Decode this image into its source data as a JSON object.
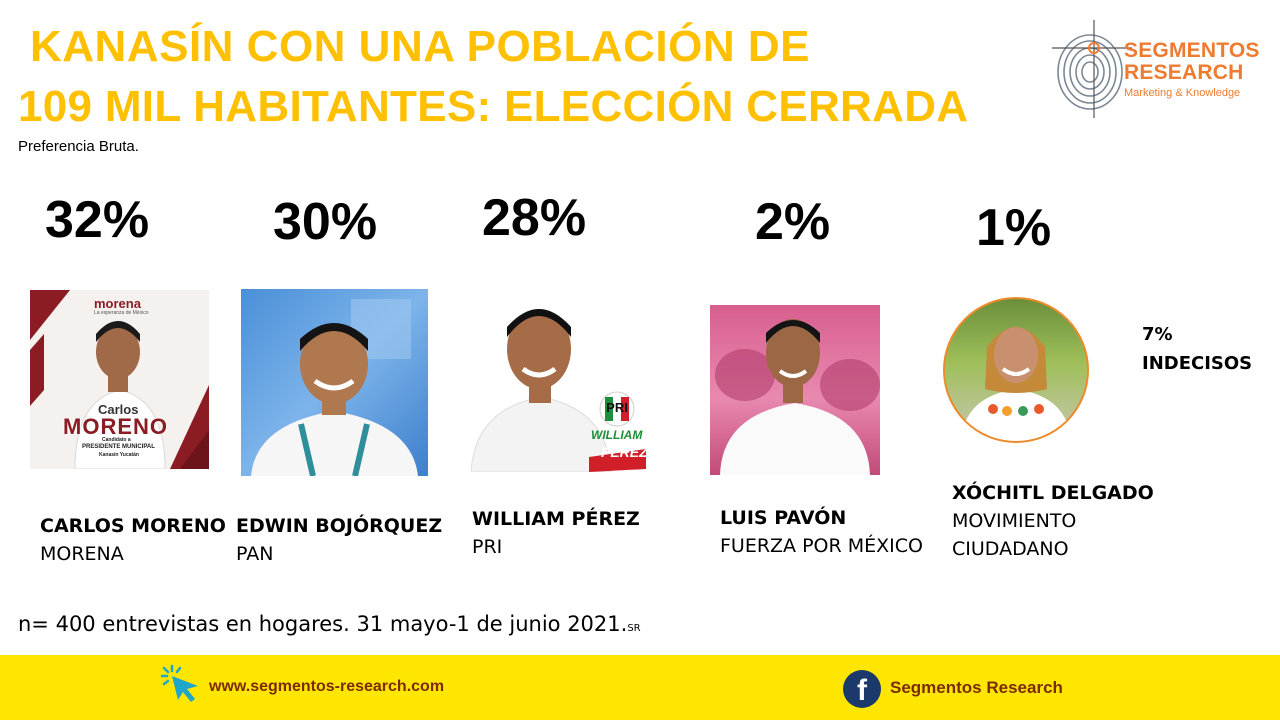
{
  "title": {
    "line1": "KANASÍN CON UNA POBLACIÓN DE",
    "line2": "109 MIL HABITANTES: ELECCIÓN CERRADA",
    "subtitle": "Preferencia Bruta."
  },
  "logo": {
    "name_line1": "SEGMENTOS",
    "name_line2": "RESEARCH",
    "tagline": "Marketing & Knowledge"
  },
  "candidates": [
    {
      "percent": "32%",
      "name": "CARLOS MORENO",
      "party": "MORENA",
      "poster": {
        "party": "morena",
        "slogan": "La esperanza de México",
        "first": "Carlos",
        "last": "MORENO",
        "caption1": "Candidato a",
        "caption2": "PRESIDENTE MUNICIPAL",
        "caption3": "Kanasín Yucatán"
      }
    },
    {
      "percent": "30%",
      "name": "EDWIN BOJÓRQUEZ",
      "party": "PAN"
    },
    {
      "percent": "28%",
      "name": "WILLIAM PÉREZ",
      "party": "PRI",
      "poster": {
        "party": "PRI",
        "first": "WILLIAM",
        "last": "PÉREZ"
      }
    },
    {
      "percent": "2%",
      "name": "LUIS PAVÓN",
      "party": "FUERZA POR MÉXICO"
    },
    {
      "percent": "1%",
      "name": "XÓCHITL DELGADO",
      "party_line1": "MOVIMIENTO",
      "party_line2": "CIUDADANO"
    }
  ],
  "undecided": {
    "percent": "7%",
    "label": "INDECISOS"
  },
  "footnote": {
    "text": "n= 400 entrevistas en hogares. 31 mayo-1 de junio 2021.",
    "mark": "SR"
  },
  "footer": {
    "website": "www.segmentos-research.com",
    "facebook": "Segmentos Research"
  },
  "colors": {
    "title": "#ffc000",
    "footer_bar": "#ffe600",
    "footer_text": "#7a2c00",
    "logo": "#ee7b30"
  },
  "icons": {
    "website": "cursor-click-icon",
    "facebook": "facebook-icon",
    "logo": "fingerprint-target-icon"
  }
}
